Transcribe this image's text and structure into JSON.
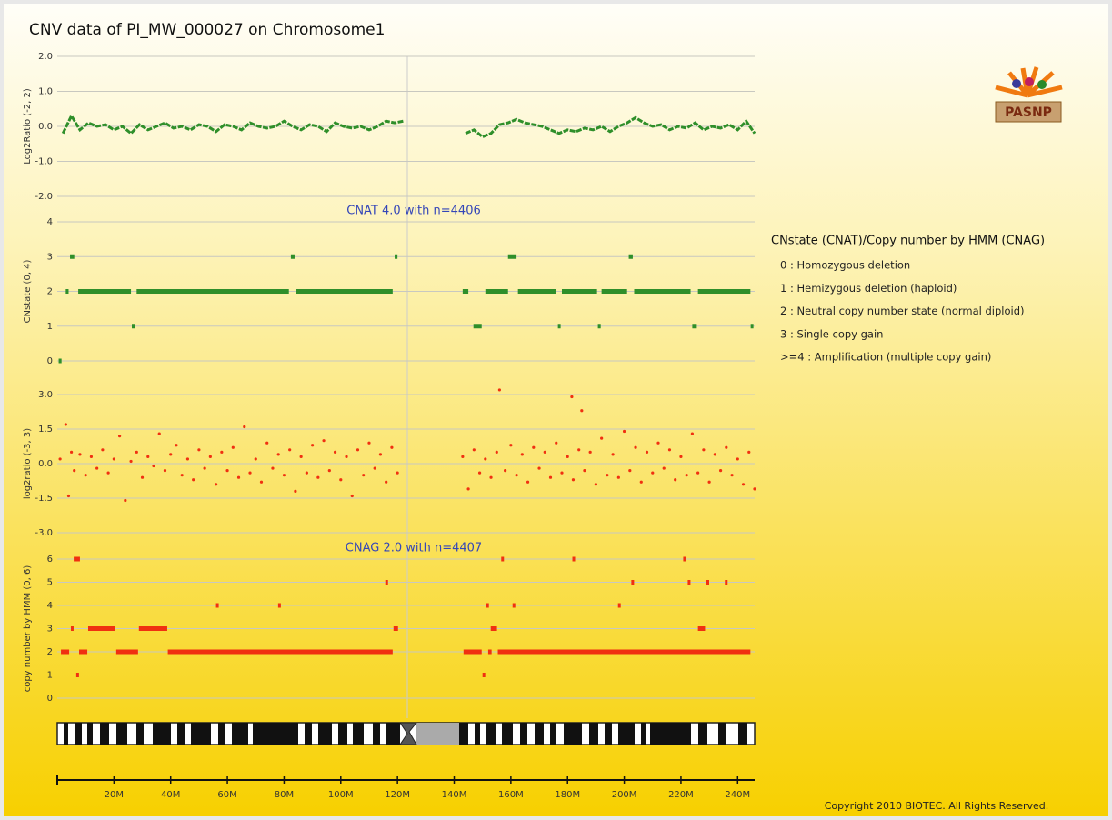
{
  "title": "CNV data of PI_MW_000027 on Chromosome1",
  "logo": "PASNP",
  "copyright": "Copyright 2010 BIOTEC. All Rights Reserved.",
  "legend": {
    "title": "CNstate (CNAT)/Copy number by HMM (CNAG)",
    "items": [
      "0 : Homozygous deletion",
      "1 : Hemizygous deletion (haploid)",
      "2 : Neutral copy number state (normal diploid)",
      "3 : Single copy gain",
      ">=4 : Amplification (multiple copy gain)"
    ]
  },
  "chart_data": [
    {
      "type": "line",
      "ylabel": "Log2Ratio (-2, 2)",
      "color": "#2f8f2a",
      "xlim": [
        0,
        246
      ],
      "ylim": [
        -2,
        2
      ],
      "yticks": [
        {
          "value": 2,
          "label": "2.0"
        },
        {
          "value": 1,
          "label": "1.0"
        },
        {
          "value": 0,
          "label": "0.0"
        },
        {
          "value": -1,
          "label": "-1.0"
        },
        {
          "value": -2,
          "label": "-2.0"
        }
      ],
      "x": [
        2,
        5,
        8,
        11,
        14,
        17,
        20,
        23,
        26,
        29,
        32,
        35,
        38,
        41,
        44,
        47,
        50,
        53,
        56,
        59,
        62,
        65,
        68,
        71,
        74,
        77,
        80,
        83,
        86,
        89,
        92,
        95,
        98,
        101,
        104,
        107,
        110,
        113,
        116,
        119,
        122,
        132,
        144,
        147,
        150,
        153,
        156,
        159,
        162,
        165,
        168,
        171,
        174,
        177,
        180,
        183,
        186,
        189,
        192,
        195,
        198,
        201,
        204,
        207,
        210,
        213,
        216,
        219,
        222,
        225,
        228,
        231,
        234,
        237,
        240,
        243,
        246
      ],
      "values": [
        -0.2,
        0.3,
        -0.1,
        0.1,
        0.0,
        0.05,
        -0.1,
        0.0,
        -0.2,
        0.05,
        -0.1,
        0.0,
        0.1,
        -0.05,
        0.0,
        -0.1,
        0.05,
        0.0,
        -0.15,
        0.05,
        0.0,
        -0.1,
        0.1,
        0.0,
        -0.05,
        0.0,
        0.15,
        0.0,
        -0.1,
        0.05,
        0.0,
        -0.15,
        0.1,
        0.0,
        -0.05,
        0.0,
        -0.1,
        0.0,
        0.15,
        0.1,
        0.15,
        null,
        -0.2,
        -0.1,
        -0.3,
        -0.2,
        0.05,
        0.1,
        0.2,
        0.1,
        0.05,
        0.0,
        -0.1,
        -0.2,
        -0.1,
        -0.15,
        -0.05,
        -0.1,
        0.0,
        -0.15,
        0.0,
        0.1,
        0.25,
        0.1,
        0.0,
        0.05,
        -0.1,
        0.0,
        -0.05,
        0.1,
        -0.1,
        0.0,
        -0.05,
        0.05,
        -0.1,
        0.15,
        -0.2
      ]
    },
    {
      "type": "segment",
      "ylabel": "CNstate (0, 4)",
      "annotation": "CNAT 4.0 with n=4406",
      "color": "#2f8f2a",
      "xlim": [
        0,
        246
      ],
      "ylim": [
        0,
        4
      ],
      "yticks": [
        4,
        3,
        2,
        1,
        0
      ],
      "segments": [
        {
          "start": 0.5,
          "end": 1.5,
          "value": 0
        },
        {
          "start": 4.5,
          "end": 6,
          "value": 3
        },
        {
          "start": 82.4,
          "end": 83.7,
          "value": 3
        },
        {
          "start": 119,
          "end": 120,
          "value": 3
        },
        {
          "start": 159,
          "end": 162,
          "value": 3
        },
        {
          "start": 201.6,
          "end": 203,
          "value": 3
        },
        {
          "start": 3,
          "end": 4,
          "value": 2
        },
        {
          "start": 7.4,
          "end": 26,
          "value": 2
        },
        {
          "start": 28,
          "end": 81.7,
          "value": 2
        },
        {
          "start": 84.3,
          "end": 118.3,
          "value": 2
        },
        {
          "start": 143,
          "end": 145,
          "value": 2
        },
        {
          "start": 151,
          "end": 159,
          "value": 2
        },
        {
          "start": 162.5,
          "end": 176,
          "value": 2
        },
        {
          "start": 178,
          "end": 190.4,
          "value": 2
        },
        {
          "start": 192,
          "end": 201,
          "value": 2
        },
        {
          "start": 203.5,
          "end": 223.4,
          "value": 2
        },
        {
          "start": 226,
          "end": 244.5,
          "value": 2
        },
        {
          "start": 26.3,
          "end": 27.2,
          "value": 1
        },
        {
          "start": 146.8,
          "end": 149.7,
          "value": 1
        },
        {
          "start": 176.6,
          "end": 177.5,
          "value": 1
        },
        {
          "start": 190.7,
          "end": 191.7,
          "value": 1
        },
        {
          "start": 224,
          "end": 225.6,
          "value": 1
        },
        {
          "start": 244.6,
          "end": 245,
          "value": 1
        }
      ]
    },
    {
      "type": "scatter",
      "ylabel": "log2ratio (-3, 3)",
      "color": "#f03010",
      "xlim": [
        0,
        246
      ],
      "ylim": [
        -3,
        3
      ],
      "yticks": [
        {
          "value": 3,
          "label": "3.0"
        },
        1.5,
        {
          "value": 0,
          "label": "0.0"
        },
        -1.5,
        {
          "value": -3,
          "label": "-3.0"
        }
      ],
      "x": [
        1,
        3,
        4,
        5,
        6,
        8,
        10,
        12,
        14,
        16,
        18,
        20,
        22,
        24,
        26,
        28,
        30,
        32,
        34,
        36,
        38,
        40,
        42,
        44,
        46,
        48,
        50,
        52,
        54,
        56,
        58,
        60,
        62,
        64,
        66,
        68,
        70,
        72,
        74,
        76,
        78,
        80,
        82,
        84,
        86,
        88,
        90,
        92,
        94,
        96,
        98,
        100,
        102,
        104,
        106,
        108,
        110,
        112,
        114,
        116,
        118,
        120,
        143,
        145,
        147,
        149,
        151,
        153,
        155,
        156,
        158,
        160,
        162,
        164,
        166,
        168,
        170,
        172,
        174,
        176,
        178,
        180,
        181.5,
        182,
        184,
        185,
        186,
        188,
        190,
        192,
        194,
        196,
        198,
        200,
        202,
        204,
        206,
        208,
        210,
        212,
        214,
        216,
        218,
        220,
        222,
        224,
        226,
        228,
        230,
        232,
        234,
        236,
        238,
        240,
        242,
        244,
        246
      ],
      "values": [
        0.2,
        1.7,
        -1.4,
        0.5,
        -0.3,
        0.4,
        -0.5,
        0.3,
        -0.2,
        0.6,
        -0.4,
        0.2,
        1.2,
        -1.6,
        0.1,
        0.5,
        -0.6,
        0.3,
        -0.1,
        1.3,
        -0.3,
        0.4,
        0.8,
        -0.5,
        0.2,
        -0.7,
        0.6,
        -0.2,
        0.3,
        -0.9,
        0.5,
        -0.3,
        0.7,
        -0.6,
        1.6,
        -0.4,
        0.2,
        -0.8,
        0.9,
        -0.2,
        0.4,
        -0.5,
        0.6,
        -1.2,
        0.3,
        -0.4,
        0.8,
        -0.6,
        1.0,
        -0.3,
        0.5,
        -0.7,
        0.3,
        -1.4,
        0.6,
        -0.5,
        0.9,
        -0.2,
        0.4,
        -0.8,
        0.7,
        -0.4,
        0.3,
        -1.1,
        0.6,
        -0.4,
        0.2,
        -0.6,
        0.5,
        3.2,
        -0.3,
        0.8,
        -0.5,
        0.4,
        -0.8,
        0.7,
        -0.2,
        0.5,
        -0.6,
        0.9,
        -0.4,
        0.3,
        2.9,
        -0.7,
        0.6,
        2.3,
        -0.3,
        0.5,
        -0.9,
        1.1,
        -0.5,
        0.4,
        -0.6,
        1.4,
        -0.3,
        0.7,
        -0.8,
        0.5,
        -0.4,
        0.9,
        -0.2,
        0.6,
        -0.7,
        0.3,
        -0.5,
        1.3,
        -0.4,
        0.6,
        -0.8,
        0.4,
        -0.3,
        0.7,
        -0.5,
        0.2,
        -0.9,
        0.5,
        -1.1
      ]
    },
    {
      "type": "segment",
      "ylabel": "copy number by HMM (0, 6)",
      "annotation": "CNAG 2.0 with n=4407",
      "color": "#f03010",
      "xlim": [
        0,
        246
      ],
      "ylim": [
        0,
        6
      ],
      "yticks": [
        6,
        5,
        4,
        3,
        2,
        1,
        0
      ],
      "xticks": [
        {
          "value": 20,
          "label": "20M"
        },
        {
          "value": 40,
          "label": "40M"
        },
        {
          "value": 60,
          "label": "60M"
        },
        {
          "value": 80,
          "label": "80M"
        },
        {
          "value": 100,
          "label": "100M"
        },
        {
          "value": 120,
          "label": "120M"
        },
        {
          "value": 140,
          "label": "140M"
        },
        {
          "value": 160,
          "label": "160M"
        },
        {
          "value": 180,
          "label": "180M"
        },
        {
          "value": 200,
          "label": "200M"
        },
        {
          "value": 220,
          "label": "220M"
        },
        {
          "value": 240,
          "label": "240M"
        }
      ],
      "segments": [
        {
          "start": 5.8,
          "end": 8,
          "value": 6
        },
        {
          "start": 156.6,
          "end": 157.2,
          "value": 6
        },
        {
          "start": 181.7,
          "end": 182.3,
          "value": 6
        },
        {
          "start": 220.8,
          "end": 221.4,
          "value": 6
        },
        {
          "start": 115.7,
          "end": 116.3,
          "value": 5
        },
        {
          "start": 202.5,
          "end": 203.1,
          "value": 5
        },
        {
          "start": 222.4,
          "end": 223,
          "value": 5
        },
        {
          "start": 229,
          "end": 229.6,
          "value": 5
        },
        {
          "start": 235.5,
          "end": 236.1,
          "value": 5
        },
        {
          "start": 56,
          "end": 56.4,
          "value": 4
        },
        {
          "start": 77.9,
          "end": 78.3,
          "value": 4
        },
        {
          "start": 151.3,
          "end": 151.8,
          "value": 4
        },
        {
          "start": 160.6,
          "end": 161.1,
          "value": 4
        },
        {
          "start": 197.8,
          "end": 198.3,
          "value": 4
        },
        {
          "start": 4.8,
          "end": 5.1,
          "value": 3
        },
        {
          "start": 10.9,
          "end": 20.5,
          "value": 3
        },
        {
          "start": 28.8,
          "end": 38.8,
          "value": 3
        },
        {
          "start": 118.6,
          "end": 120.2,
          "value": 3
        },
        {
          "start": 152.9,
          "end": 155.1,
          "value": 3
        },
        {
          "start": 226,
          "end": 228.5,
          "value": 3
        },
        {
          "start": 1.3,
          "end": 4.2,
          "value": 2
        },
        {
          "start": 7.7,
          "end": 10.6,
          "value": 2
        },
        {
          "start": 20.8,
          "end": 28.5,
          "value": 2
        },
        {
          "start": 39,
          "end": 118.3,
          "value": 2
        },
        {
          "start": 143.3,
          "end": 149.7,
          "value": 2
        },
        {
          "start": 152,
          "end": 153.2,
          "value": 2
        },
        {
          "start": 155.4,
          "end": 244.5,
          "value": 2
        },
        {
          "start": 6.7,
          "end": 7,
          "value": 1
        },
        {
          "start": 150,
          "end": 150.3,
          "value": 1
        }
      ]
    }
  ]
}
